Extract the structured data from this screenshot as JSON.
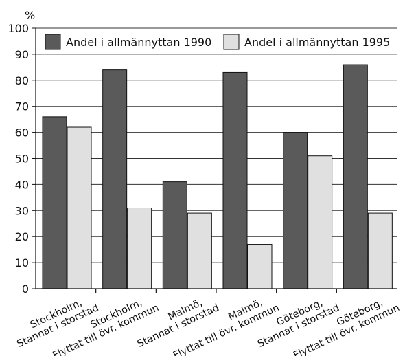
{
  "chart_data": {
    "type": "bar",
    "ylabel": "%",
    "ylim": [
      0,
      100
    ],
    "yticks": [
      0,
      10,
      20,
      30,
      40,
      50,
      60,
      70,
      80,
      90,
      100
    ],
    "grid": true,
    "legend_position": "top",
    "categories": [
      [
        "Stockholm,",
        "Stannat i storstad"
      ],
      [
        "Stockholm,",
        "Flyttat till övr. kommun"
      ],
      [
        "Malmö,",
        "Stannat i storstad"
      ],
      [
        "Malmö,",
        "Flyttat till övr. kommun"
      ],
      [
        "Göteborg,",
        "Stannat i storstad"
      ],
      [
        "Göteborg,",
        "Flyttat till övr. kommun"
      ]
    ],
    "series": [
      {
        "name": "Andel i allmännyttan 1990",
        "color": "#5a5a5a",
        "values": [
          66,
          84,
          41,
          83,
          60,
          86
        ]
      },
      {
        "name": "Andel i allmännyttan 1995",
        "color": "#e0e0e0",
        "values": [
          62,
          31,
          29,
          17,
          51,
          29
        ]
      }
    ]
  }
}
